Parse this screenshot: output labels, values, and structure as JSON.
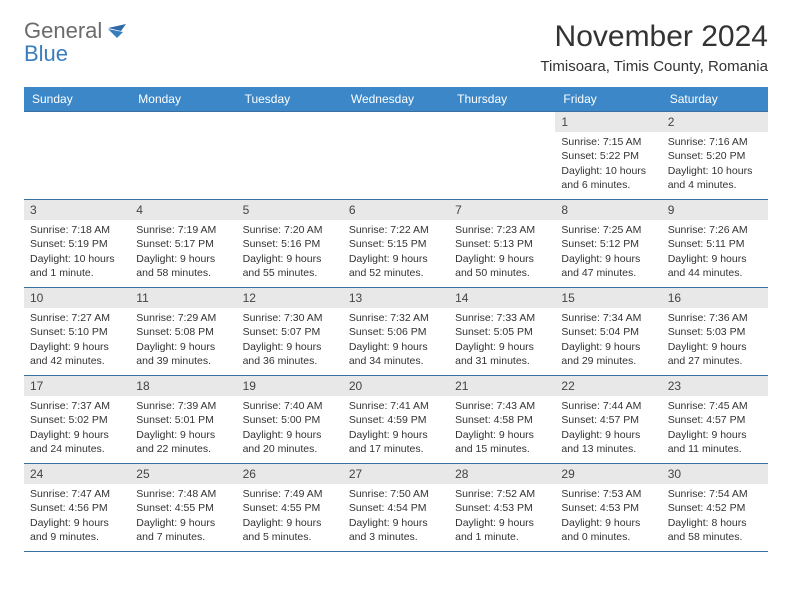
{
  "logo": {
    "word1": "General",
    "word2": "Blue"
  },
  "title": "November 2024",
  "location": "Timisoara, Timis County, Romania",
  "colors": {
    "header_bg": "#3b87c8",
    "header_fg": "#ffffff",
    "border": "#3b6fa0",
    "daynum_bg": "#e8e8e8",
    "text": "#333333",
    "logo_gray": "#6b6b6b",
    "logo_blue": "#3a7dbf"
  },
  "weekdays": [
    "Sunday",
    "Monday",
    "Tuesday",
    "Wednesday",
    "Thursday",
    "Friday",
    "Saturday"
  ],
  "weeks": [
    [
      {
        "day": "",
        "sunrise": "",
        "sunset": "",
        "daylight1": "",
        "daylight2": "",
        "empty": true
      },
      {
        "day": "",
        "sunrise": "",
        "sunset": "",
        "daylight1": "",
        "daylight2": "",
        "empty": true
      },
      {
        "day": "",
        "sunrise": "",
        "sunset": "",
        "daylight1": "",
        "daylight2": "",
        "empty": true
      },
      {
        "day": "",
        "sunrise": "",
        "sunset": "",
        "daylight1": "",
        "daylight2": "",
        "empty": true
      },
      {
        "day": "",
        "sunrise": "",
        "sunset": "",
        "daylight1": "",
        "daylight2": "",
        "empty": true
      },
      {
        "day": "1",
        "sunrise": "Sunrise: 7:15 AM",
        "sunset": "Sunset: 5:22 PM",
        "daylight1": "Daylight: 10 hours",
        "daylight2": "and 6 minutes."
      },
      {
        "day": "2",
        "sunrise": "Sunrise: 7:16 AM",
        "sunset": "Sunset: 5:20 PM",
        "daylight1": "Daylight: 10 hours",
        "daylight2": "and 4 minutes."
      }
    ],
    [
      {
        "day": "3",
        "sunrise": "Sunrise: 7:18 AM",
        "sunset": "Sunset: 5:19 PM",
        "daylight1": "Daylight: 10 hours",
        "daylight2": "and 1 minute."
      },
      {
        "day": "4",
        "sunrise": "Sunrise: 7:19 AM",
        "sunset": "Sunset: 5:17 PM",
        "daylight1": "Daylight: 9 hours",
        "daylight2": "and 58 minutes."
      },
      {
        "day": "5",
        "sunrise": "Sunrise: 7:20 AM",
        "sunset": "Sunset: 5:16 PM",
        "daylight1": "Daylight: 9 hours",
        "daylight2": "and 55 minutes."
      },
      {
        "day": "6",
        "sunrise": "Sunrise: 7:22 AM",
        "sunset": "Sunset: 5:15 PM",
        "daylight1": "Daylight: 9 hours",
        "daylight2": "and 52 minutes."
      },
      {
        "day": "7",
        "sunrise": "Sunrise: 7:23 AM",
        "sunset": "Sunset: 5:13 PM",
        "daylight1": "Daylight: 9 hours",
        "daylight2": "and 50 minutes."
      },
      {
        "day": "8",
        "sunrise": "Sunrise: 7:25 AM",
        "sunset": "Sunset: 5:12 PM",
        "daylight1": "Daylight: 9 hours",
        "daylight2": "and 47 minutes."
      },
      {
        "day": "9",
        "sunrise": "Sunrise: 7:26 AM",
        "sunset": "Sunset: 5:11 PM",
        "daylight1": "Daylight: 9 hours",
        "daylight2": "and 44 minutes."
      }
    ],
    [
      {
        "day": "10",
        "sunrise": "Sunrise: 7:27 AM",
        "sunset": "Sunset: 5:10 PM",
        "daylight1": "Daylight: 9 hours",
        "daylight2": "and 42 minutes."
      },
      {
        "day": "11",
        "sunrise": "Sunrise: 7:29 AM",
        "sunset": "Sunset: 5:08 PM",
        "daylight1": "Daylight: 9 hours",
        "daylight2": "and 39 minutes."
      },
      {
        "day": "12",
        "sunrise": "Sunrise: 7:30 AM",
        "sunset": "Sunset: 5:07 PM",
        "daylight1": "Daylight: 9 hours",
        "daylight2": "and 36 minutes."
      },
      {
        "day": "13",
        "sunrise": "Sunrise: 7:32 AM",
        "sunset": "Sunset: 5:06 PM",
        "daylight1": "Daylight: 9 hours",
        "daylight2": "and 34 minutes."
      },
      {
        "day": "14",
        "sunrise": "Sunrise: 7:33 AM",
        "sunset": "Sunset: 5:05 PM",
        "daylight1": "Daylight: 9 hours",
        "daylight2": "and 31 minutes."
      },
      {
        "day": "15",
        "sunrise": "Sunrise: 7:34 AM",
        "sunset": "Sunset: 5:04 PM",
        "daylight1": "Daylight: 9 hours",
        "daylight2": "and 29 minutes."
      },
      {
        "day": "16",
        "sunrise": "Sunrise: 7:36 AM",
        "sunset": "Sunset: 5:03 PM",
        "daylight1": "Daylight: 9 hours",
        "daylight2": "and 27 minutes."
      }
    ],
    [
      {
        "day": "17",
        "sunrise": "Sunrise: 7:37 AM",
        "sunset": "Sunset: 5:02 PM",
        "daylight1": "Daylight: 9 hours",
        "daylight2": "and 24 minutes."
      },
      {
        "day": "18",
        "sunrise": "Sunrise: 7:39 AM",
        "sunset": "Sunset: 5:01 PM",
        "daylight1": "Daylight: 9 hours",
        "daylight2": "and 22 minutes."
      },
      {
        "day": "19",
        "sunrise": "Sunrise: 7:40 AM",
        "sunset": "Sunset: 5:00 PM",
        "daylight1": "Daylight: 9 hours",
        "daylight2": "and 20 minutes."
      },
      {
        "day": "20",
        "sunrise": "Sunrise: 7:41 AM",
        "sunset": "Sunset: 4:59 PM",
        "daylight1": "Daylight: 9 hours",
        "daylight2": "and 17 minutes."
      },
      {
        "day": "21",
        "sunrise": "Sunrise: 7:43 AM",
        "sunset": "Sunset: 4:58 PM",
        "daylight1": "Daylight: 9 hours",
        "daylight2": "and 15 minutes."
      },
      {
        "day": "22",
        "sunrise": "Sunrise: 7:44 AM",
        "sunset": "Sunset: 4:57 PM",
        "daylight1": "Daylight: 9 hours",
        "daylight2": "and 13 minutes."
      },
      {
        "day": "23",
        "sunrise": "Sunrise: 7:45 AM",
        "sunset": "Sunset: 4:57 PM",
        "daylight1": "Daylight: 9 hours",
        "daylight2": "and 11 minutes."
      }
    ],
    [
      {
        "day": "24",
        "sunrise": "Sunrise: 7:47 AM",
        "sunset": "Sunset: 4:56 PM",
        "daylight1": "Daylight: 9 hours",
        "daylight2": "and 9 minutes."
      },
      {
        "day": "25",
        "sunrise": "Sunrise: 7:48 AM",
        "sunset": "Sunset: 4:55 PM",
        "daylight1": "Daylight: 9 hours",
        "daylight2": "and 7 minutes."
      },
      {
        "day": "26",
        "sunrise": "Sunrise: 7:49 AM",
        "sunset": "Sunset: 4:55 PM",
        "daylight1": "Daylight: 9 hours",
        "daylight2": "and 5 minutes."
      },
      {
        "day": "27",
        "sunrise": "Sunrise: 7:50 AM",
        "sunset": "Sunset: 4:54 PM",
        "daylight1": "Daylight: 9 hours",
        "daylight2": "and 3 minutes."
      },
      {
        "day": "28",
        "sunrise": "Sunrise: 7:52 AM",
        "sunset": "Sunset: 4:53 PM",
        "daylight1": "Daylight: 9 hours",
        "daylight2": "and 1 minute."
      },
      {
        "day": "29",
        "sunrise": "Sunrise: 7:53 AM",
        "sunset": "Sunset: 4:53 PM",
        "daylight1": "Daylight: 9 hours",
        "daylight2": "and 0 minutes."
      },
      {
        "day": "30",
        "sunrise": "Sunrise: 7:54 AM",
        "sunset": "Sunset: 4:52 PM",
        "daylight1": "Daylight: 8 hours",
        "daylight2": "and 58 minutes."
      }
    ]
  ]
}
